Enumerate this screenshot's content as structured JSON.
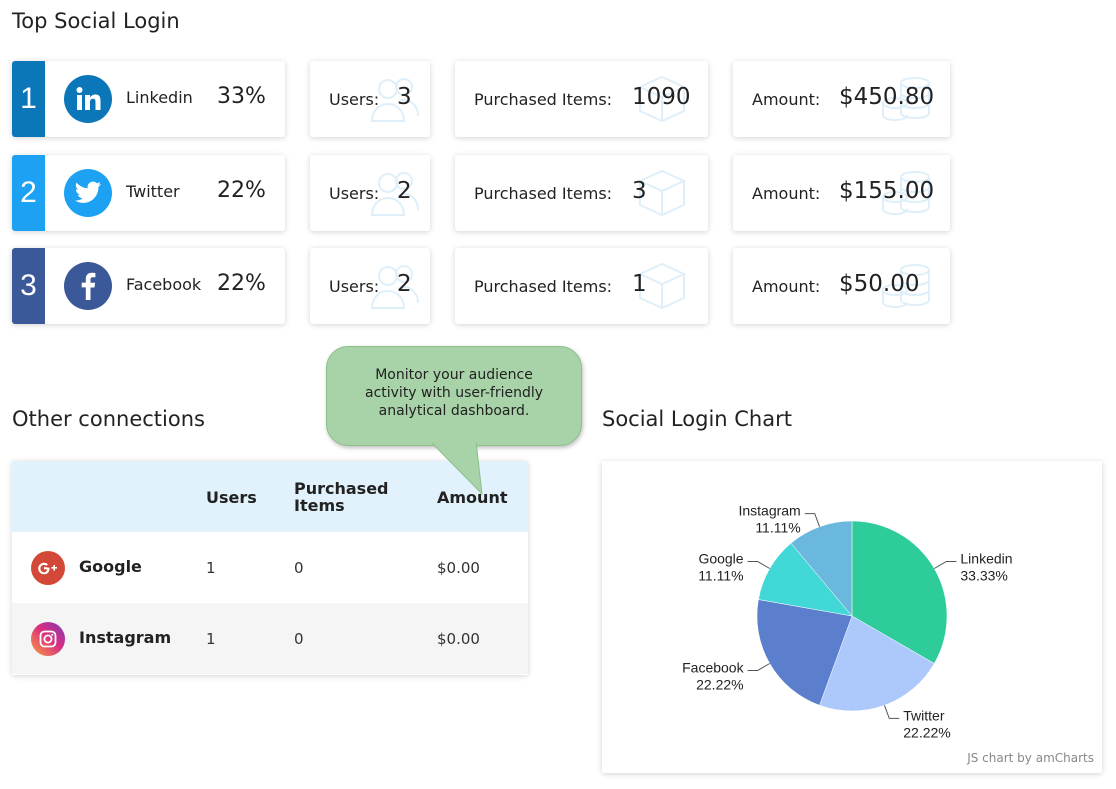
{
  "top_social": {
    "title": "Top Social Login",
    "rows": [
      {
        "rank": "1",
        "network": "Linkedin",
        "percent": "33%",
        "users_label": "Users:",
        "users": "3",
        "items_label": "Purchased Items:",
        "items": "1090",
        "amount_label": "Amount:",
        "amount": "$450.80",
        "color": "#0c77b8",
        "icon": "linkedin-icon"
      },
      {
        "rank": "2",
        "network": "Twitter",
        "percent": "22%",
        "users_label": "Users:",
        "users": "2",
        "items_label": "Purchased Items:",
        "items": "3",
        "amount_label": "Amount:",
        "amount": "$155.00",
        "color": "#1da1f2",
        "icon": "twitter-icon"
      },
      {
        "rank": "3",
        "network": "Facebook",
        "percent": "22%",
        "users_label": "Users:",
        "users": "2",
        "items_label": "Purchased Items:",
        "items": "1",
        "amount_label": "Amount:",
        "amount": "$50.00",
        "color": "#3b5998",
        "icon": "facebook-icon"
      }
    ]
  },
  "other_connections": {
    "title": "Other connections",
    "headers": {
      "users": "Users",
      "items": "Purchased Items",
      "amount": "Amount"
    },
    "rows": [
      {
        "name": "Google",
        "users": "1",
        "items": "0",
        "amount": "$0.00",
        "icon": "google-plus-icon",
        "color": "#d34836"
      },
      {
        "name": "Instagram",
        "users": "1",
        "items": "0",
        "amount": "$0.00",
        "icon": "instagram-icon",
        "color": "#c13584"
      }
    ]
  },
  "tooltip": {
    "text": "Monitor your audience activity with user-friendly analytical dashboard."
  },
  "chart": {
    "title": "Social Login Chart",
    "credit": "JS chart by amCharts"
  },
  "chart_data": {
    "type": "pie",
    "title": "Social Login Chart",
    "slices": [
      {
        "label": "Linkedin",
        "value": 33.33,
        "display": "33.33%",
        "color": "#2ecc9a"
      },
      {
        "label": "Twitter",
        "value": 22.22,
        "display": "22.22%",
        "color": "#adc8fb"
      },
      {
        "label": "Facebook",
        "value": 22.22,
        "display": "22.22%",
        "color": "#5b7fcc"
      },
      {
        "label": "Google",
        "value": 11.11,
        "display": "11.11%",
        "color": "#42d8d8"
      },
      {
        "label": "Instagram",
        "value": 11.11,
        "display": "11.11%",
        "color": "#6bb8de"
      }
    ]
  }
}
